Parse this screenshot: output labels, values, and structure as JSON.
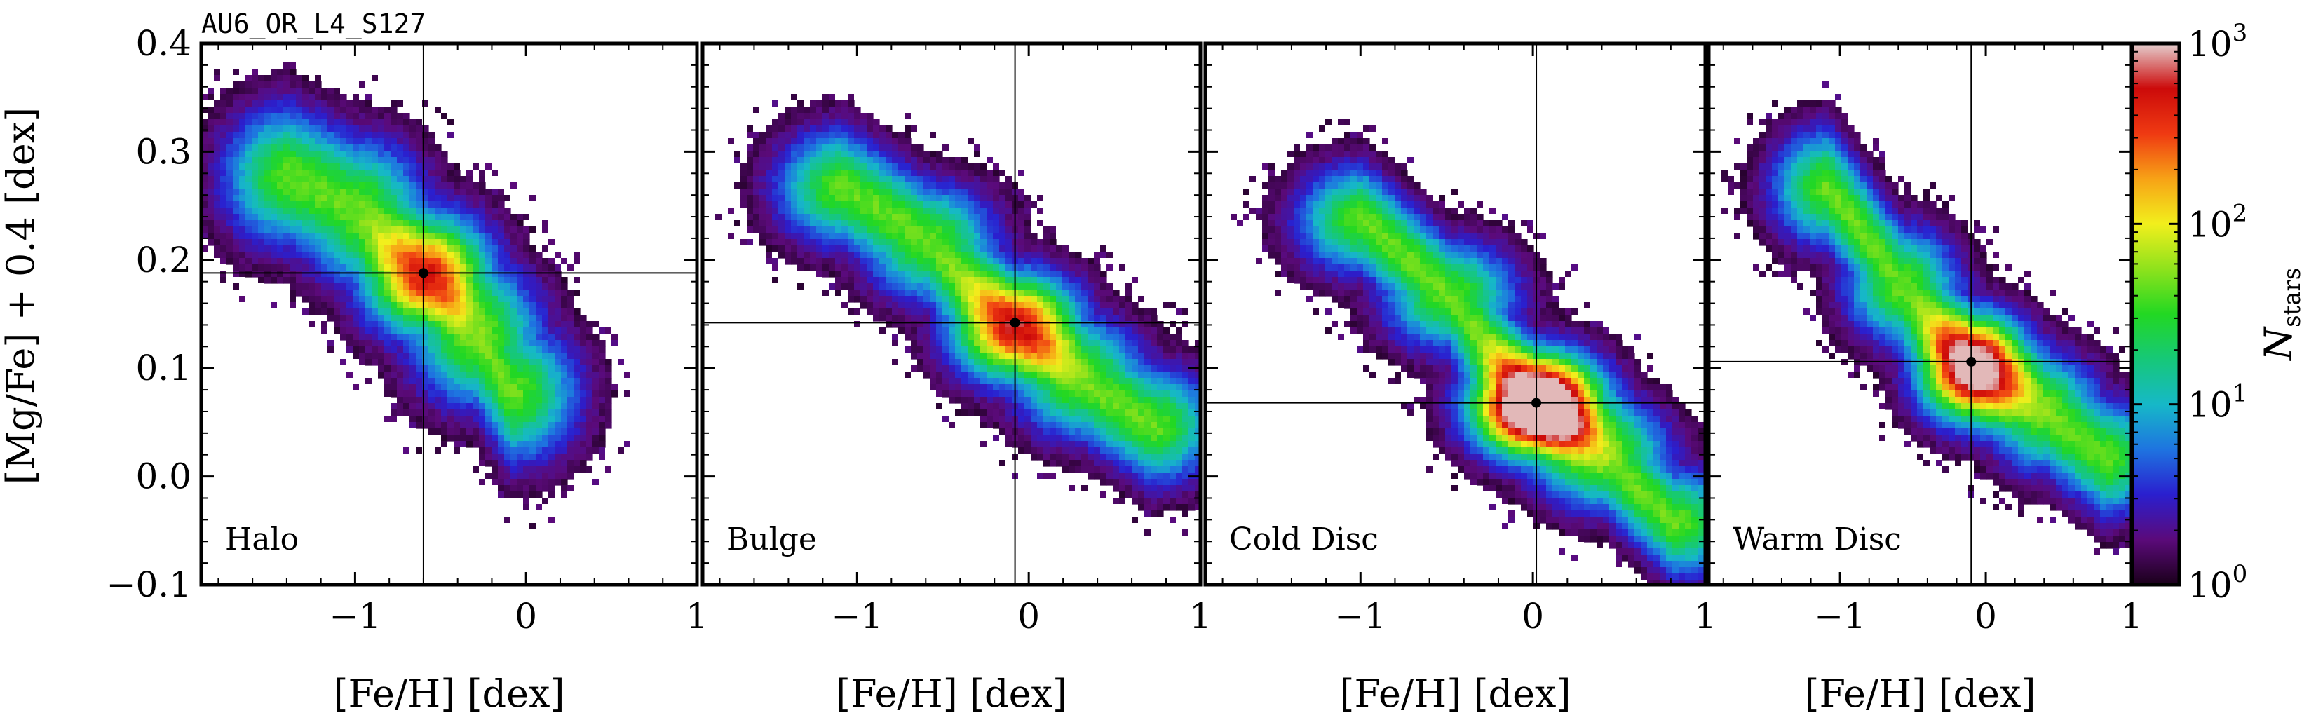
{
  "figure": {
    "run_label": "AU6_OR_L4_S127",
    "ylabel": "[Mg/Fe] + 0.4 [dex]",
    "xlabel": "[Fe/H] [dex]",
    "colorbar_label_main": "N",
    "colorbar_label_sub": "stars"
  },
  "chart_data": [
    {
      "type": "heatmap",
      "name": "Halo",
      "xlim": [
        -1.9,
        1.0
      ],
      "ylim": [
        -0.1,
        0.4
      ],
      "xticks": [
        -1,
        0,
        1
      ],
      "xtick_labels": [
        "−1",
        "0",
        "1"
      ],
      "yticks": [
        -0.1,
        0.0,
        0.1,
        0.2,
        0.3,
        0.4
      ],
      "ytick_labels": [
        "−0.1",
        "0.0",
        "0.1",
        "0.2",
        "0.3",
        "0.4"
      ],
      "median": {
        "x": -0.6,
        "y": 0.188
      },
      "peak_level": 0.35,
      "spine": [
        [
          -1.4,
          0.28
        ],
        [
          -1.0,
          0.25
        ],
        [
          -0.6,
          0.19
        ],
        [
          -0.3,
          0.13
        ],
        [
          -0.1,
          0.08
        ]
      ],
      "spine_width": 0.09
    },
    {
      "type": "heatmap",
      "name": "Bulge",
      "xlim": [
        -1.9,
        1.0
      ],
      "ylim": [
        -0.1,
        0.4
      ],
      "xticks": [
        -1,
        0,
        1
      ],
      "xtick_labels": [
        "−1",
        "0",
        "1"
      ],
      "median": {
        "x": -0.08,
        "y": 0.142
      },
      "peak_level": 0.38,
      "spine": [
        [
          -1.1,
          0.27
        ],
        [
          -0.6,
          0.22
        ],
        [
          -0.1,
          0.14
        ],
        [
          0.3,
          0.09
        ],
        [
          0.7,
          0.05
        ]
      ],
      "spine_width": 0.075
    },
    {
      "type": "heatmap",
      "name": "Cold Disc",
      "xlim": [
        -1.9,
        1.0
      ],
      "ylim": [
        -0.1,
        0.4
      ],
      "xticks": [
        -1,
        0,
        1
      ],
      "xtick_labels": [
        "−1",
        "0",
        "1"
      ],
      "median": {
        "x": 0.02,
        "y": 0.068
      },
      "peak_level": 0.85,
      "spine": [
        [
          -1.0,
          0.24
        ],
        [
          -0.5,
          0.17
        ],
        [
          0.0,
          0.07
        ],
        [
          0.4,
          0.02
        ],
        [
          0.8,
          -0.04
        ]
      ],
      "spine_width": 0.07
    },
    {
      "type": "heatmap",
      "name": "Warm Disc",
      "xlim": [
        -1.9,
        1.0
      ],
      "ylim": [
        -0.1,
        0.4
      ],
      "xticks": [
        -1,
        0,
        1
      ],
      "xtick_labels": [
        "−1",
        "0",
        "1"
      ],
      "median": {
        "x": -0.1,
        "y": 0.106
      },
      "peak_level": 0.6,
      "spine": [
        [
          -1.1,
          0.27
        ],
        [
          -0.6,
          0.18
        ],
        [
          -0.1,
          0.1
        ],
        [
          0.4,
          0.06
        ],
        [
          0.8,
          0.02
        ]
      ],
      "spine_width": 0.075
    }
  ],
  "colorbar": {
    "scale": "log",
    "range": [
      1,
      1000
    ],
    "tick_base": "10",
    "tick_exponents": [
      "0",
      "1",
      "2",
      "3"
    ],
    "colormap": [
      "#1a001a",
      "#5b0a7a",
      "#2a1fcf",
      "#1e74e0",
      "#16b8c8",
      "#16c878",
      "#22d822",
      "#8ee21c",
      "#f2ef1c",
      "#f7a216",
      "#ef3a12",
      "#cc0a0a",
      "#e5d0d0"
    ]
  }
}
